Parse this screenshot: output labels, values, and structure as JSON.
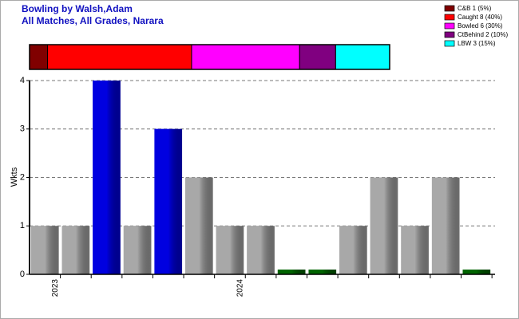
{
  "chart_data": [
    {
      "type": "stacked_bar",
      "title": "Bowling by Walsh,Adam",
      "subtitle": "All Matches, All Grades, Narara",
      "series": [
        {
          "name": "C&B 1 (5%)",
          "color": "#800000",
          "values": [
            5
          ]
        },
        {
          "name": "Caught 8 (40%)",
          "color": "#ff0000",
          "values": [
            40
          ]
        },
        {
          "name": "Bowled 6 (30%)",
          "color": "#ff00ff",
          "values": [
            30
          ]
        },
        {
          "name": "CtBehind 2 (10%)",
          "color": "#800080",
          "values": [
            10
          ]
        },
        {
          "name": "LBW 3 (15%)",
          "color": "#00ffff",
          "values": [
            15
          ]
        }
      ],
      "xlim": [
        0,
        100
      ]
    },
    {
      "type": "bar",
      "y_label": "Wkts",
      "categories": [
        "2023",
        null,
        null,
        null,
        null,
        null,
        "2024",
        null,
        null,
        null,
        null,
        null,
        null,
        null,
        null
      ],
      "values": [
        1,
        1,
        4,
        1,
        3,
        2,
        1,
        1,
        0,
        0,
        1,
        2,
        1,
        2,
        0
      ],
      "colors": [
        "#a8a8a8",
        "#a8a8a8",
        "#0000e0",
        "#a8a8a8",
        "#0000e0",
        "#a8a8a8",
        "#a8a8a8",
        "#a8a8a8",
        "#006400",
        "#006400",
        "#a8a8a8",
        "#a8a8a8",
        "#a8a8a8",
        "#a8a8a8",
        "#006400"
      ],
      "ylim": [
        0,
        4
      ],
      "yticks": [
        0,
        1,
        2,
        3,
        4
      ],
      "grid": true
    }
  ]
}
